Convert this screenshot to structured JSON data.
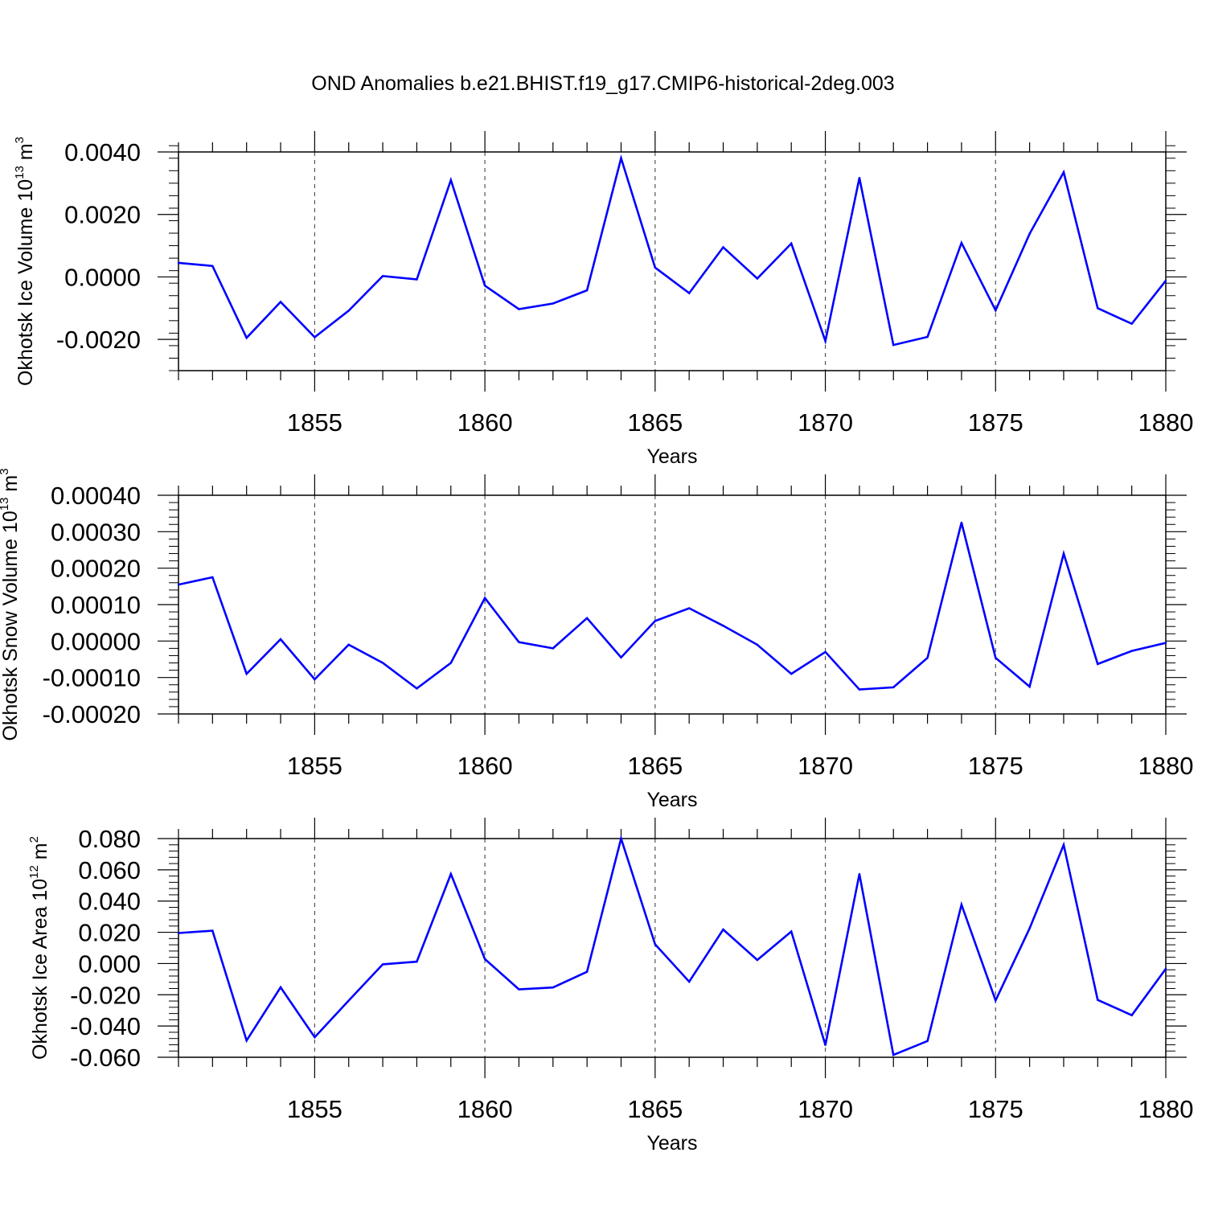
{
  "figure": {
    "title": "OND Anomalies b.e21.BHIST.f19_g17.CMIP6-historical-2deg.003",
    "line_color": "#0000ff",
    "grid_color": "#555555"
  },
  "chart_data": [
    {
      "type": "line",
      "ylabel_main": "Okhotsk Ice Volume 10",
      "ylabel_exp": "13",
      "ylabel_unit": "m",
      "ylabel_unit_exp": "3",
      "xlabel": "Years",
      "xlim": [
        1851,
        1880
      ],
      "ylim": [
        -0.003,
        0.004
      ],
      "xticks": [
        1855,
        1860,
        1865,
        1870,
        1875,
        1880
      ],
      "xtick_labels": [
        "1855",
        "1860",
        "1865",
        "1870",
        "1875",
        "1880"
      ],
      "yticks": [
        -0.002,
        0.0,
        0.002,
        0.004
      ],
      "ytick_labels": [
        "-0.0020",
        "0.0000",
        "0.0020",
        "0.0040"
      ],
      "yminor_step": 0.0004,
      "series": [
        {
          "name": "Okhotsk Ice Volume",
          "x": [
            1851,
            1852,
            1853,
            1854,
            1855,
            1856,
            1857,
            1858,
            1859,
            1860,
            1861,
            1862,
            1863,
            1864,
            1865,
            1866,
            1867,
            1868,
            1869,
            1870,
            1871,
            1872,
            1873,
            1874,
            1875,
            1876,
            1877,
            1878,
            1879,
            1880
          ],
          "values": [
            0.00045,
            0.00035,
            -0.00195,
            -0.0008,
            -0.00193,
            -0.00108,
            3e-05,
            -8e-05,
            0.0031,
            -0.00028,
            -0.00103,
            -0.00085,
            -0.00043,
            0.0038,
            0.0003,
            -0.00052,
            0.00095,
            -5e-05,
            0.00107,
            -0.00205,
            0.00317,
            -0.00218,
            -0.00192,
            0.00109,
            -0.00107,
            0.00138,
            0.00335,
            -0.001,
            -0.0015,
            -0.00012
          ]
        }
      ]
    },
    {
      "type": "line",
      "ylabel_main": "Okhotsk Snow Volume 10",
      "ylabel_exp": "13",
      "ylabel_unit": "m",
      "ylabel_unit_exp": "3",
      "xlabel": "Years",
      "xlim": [
        1851,
        1880
      ],
      "ylim": [
        -0.0002,
        0.0004
      ],
      "xticks": [
        1855,
        1860,
        1865,
        1870,
        1875,
        1880
      ],
      "xtick_labels": [
        "1855",
        "1860",
        "1865",
        "1870",
        "1875",
        "1880"
      ],
      "yticks": [
        -0.0002,
        -0.0001,
        0.0,
        0.0001,
        0.0002,
        0.0003,
        0.0004
      ],
      "ytick_labels": [
        "-0.00020",
        "-0.00010",
        "0.00000",
        "0.00010",
        "0.00020",
        "0.00030",
        "0.00040"
      ],
      "yminor_step": 2e-05,
      "series": [
        {
          "name": "Okhotsk Snow Volume",
          "x": [
            1851,
            1852,
            1853,
            1854,
            1855,
            1856,
            1857,
            1858,
            1859,
            1860,
            1861,
            1862,
            1863,
            1864,
            1865,
            1866,
            1867,
            1868,
            1869,
            1870,
            1871,
            1872,
            1873,
            1874,
            1875,
            1876,
            1877,
            1878,
            1879,
            1880
          ],
          "values": [
            0.000155,
            0.000175,
            -9e-05,
            5e-06,
            -0.000105,
            -1e-05,
            -6e-05,
            -0.00013,
            -6e-05,
            0.000118,
            -3e-06,
            -2e-05,
            6.3e-05,
            -4.5e-05,
            5.5e-05,
            9e-05,
            4.2e-05,
            -1e-05,
            -9e-05,
            -3e-05,
            -0.000133,
            -0.000127,
            -4.6e-05,
            0.000325,
            -4.6e-05,
            -0.000125,
            0.00024,
            -6.3e-05,
            -2.7e-05,
            -5e-06
          ]
        }
      ]
    },
    {
      "type": "line",
      "ylabel_main": "Okhotsk Ice Area 10",
      "ylabel_exp": "12",
      "ylabel_unit": "m",
      "ylabel_unit_exp": "2",
      "xlabel": "Years",
      "xlim": [
        1851,
        1880
      ],
      "ylim": [
        -0.06,
        0.08
      ],
      "xticks": [
        1855,
        1860,
        1865,
        1870,
        1875,
        1880
      ],
      "xtick_labels": [
        "1855",
        "1860",
        "1865",
        "1870",
        "1875",
        "1880"
      ],
      "yticks": [
        -0.06,
        -0.04,
        -0.02,
        0.0,
        0.02,
        0.04,
        0.06,
        0.08
      ],
      "ytick_labels": [
        "-0.060",
        "-0.040",
        "-0.020",
        "0.000",
        "0.020",
        "0.040",
        "0.060",
        "0.080"
      ],
      "yminor_step": 0.004,
      "series": [
        {
          "name": "Okhotsk Ice Area",
          "x": [
            1851,
            1852,
            1853,
            1854,
            1855,
            1856,
            1857,
            1858,
            1859,
            1860,
            1861,
            1862,
            1863,
            1864,
            1865,
            1866,
            1867,
            1868,
            1869,
            1870,
            1871,
            1872,
            1873,
            1874,
            1875,
            1876,
            1877,
            1878,
            1879,
            1880
          ],
          "values": [
            0.0195,
            0.021,
            -0.0493,
            -0.0152,
            -0.0472,
            -0.0237,
            -0.0005,
            0.0012,
            0.0573,
            0.0029,
            -0.0165,
            -0.0153,
            -0.0053,
            0.08,
            0.0123,
            -0.0116,
            0.0218,
            0.0023,
            0.0205,
            -0.0522,
            0.0573,
            -0.0585,
            -0.0496,
            0.0377,
            -0.0236,
            0.0225,
            0.076,
            -0.0233,
            -0.0331,
            -0.0034
          ]
        }
      ]
    }
  ]
}
